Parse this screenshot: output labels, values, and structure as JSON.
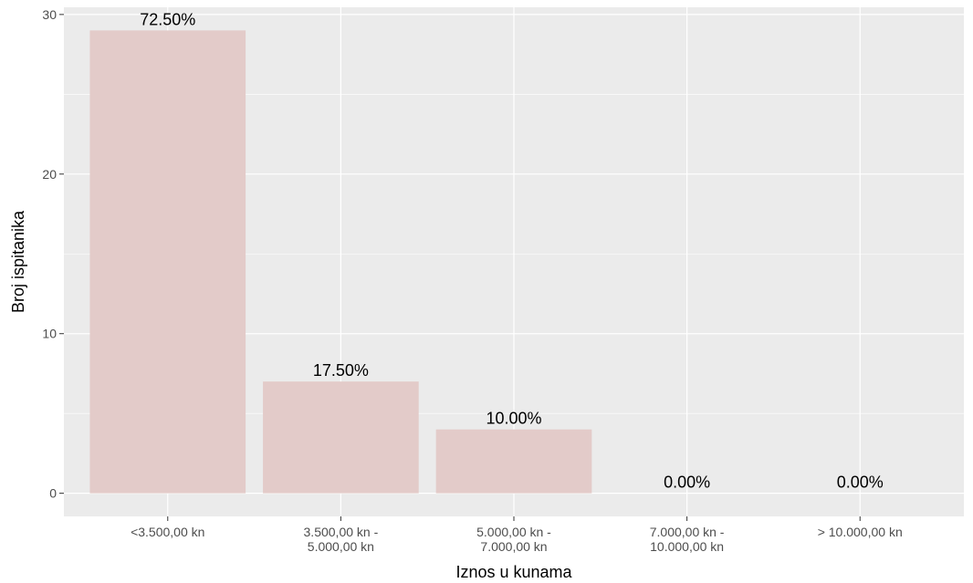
{
  "chart_data": {
    "type": "bar",
    "xlabel": "Iznos u kunama",
    "ylabel": "Broj ispitanika",
    "categories": [
      [
        "<3.500,00 kn"
      ],
      [
        "3.500,00 kn -",
        "5.000,00 kn"
      ],
      [
        "5.000,00 kn -",
        "7.000,00 kn"
      ],
      [
        "7.000,00 kn -",
        "10.000,00 kn"
      ],
      [
        "> 10.000,00 kn"
      ]
    ],
    "values": [
      29,
      7,
      4,
      0,
      0
    ],
    "labels": [
      "72.50%",
      "17.50%",
      "10.00%",
      "0.00%",
      "0.00%"
    ],
    "yticks": [
      0,
      10,
      20,
      30
    ],
    "ylim": [
      -1.45,
      30.45
    ],
    "grid": true,
    "bar_color": "#e3cbc9",
    "panel_color": "#ebebeb"
  }
}
